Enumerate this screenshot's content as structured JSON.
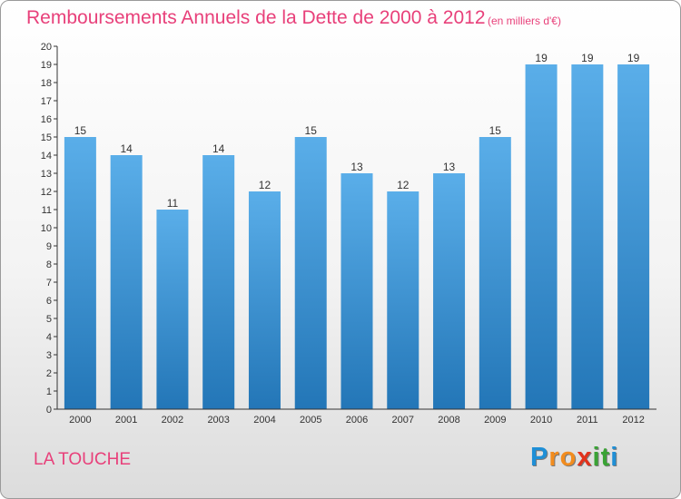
{
  "header": {
    "title": "Remboursements Annuels de la Dette de 2000 à 2012",
    "unit": "(en milliers d'€)"
  },
  "footer": {
    "city": "LA TOUCHE",
    "brand_letters": [
      "P",
      "r",
      "o",
      "x",
      "i",
      "t",
      "i"
    ],
    "brand_colors": [
      "#1f8fd6",
      "#f28c1e",
      "#f28c1e",
      "#e2321c",
      "#3aa335",
      "#3aa335",
      "#1f8fd6"
    ]
  },
  "colors": {
    "accent": "#e8407a",
    "bar_light": "#5aaee9",
    "bar_dark": "#2376b7",
    "axis": "#333333"
  },
  "chart_data": {
    "type": "bar",
    "title": "Remboursements Annuels de la Dette de 2000 à 2012",
    "subtitle": "(en milliers d'€)",
    "categories": [
      "2000",
      "2001",
      "2002",
      "2003",
      "2004",
      "2005",
      "2006",
      "2007",
      "2008",
      "2009",
      "2010",
      "2011",
      "2012"
    ],
    "values": [
      15,
      14,
      11,
      14,
      12,
      15,
      13,
      12,
      13,
      15,
      19,
      19,
      19
    ],
    "ylim": [
      0,
      20
    ],
    "yticks": [
      0,
      1,
      2,
      3,
      4,
      5,
      6,
      7,
      8,
      9,
      10,
      11,
      12,
      13,
      14,
      15,
      16,
      17,
      18,
      19,
      20
    ],
    "data_labels": true,
    "grid": false
  }
}
